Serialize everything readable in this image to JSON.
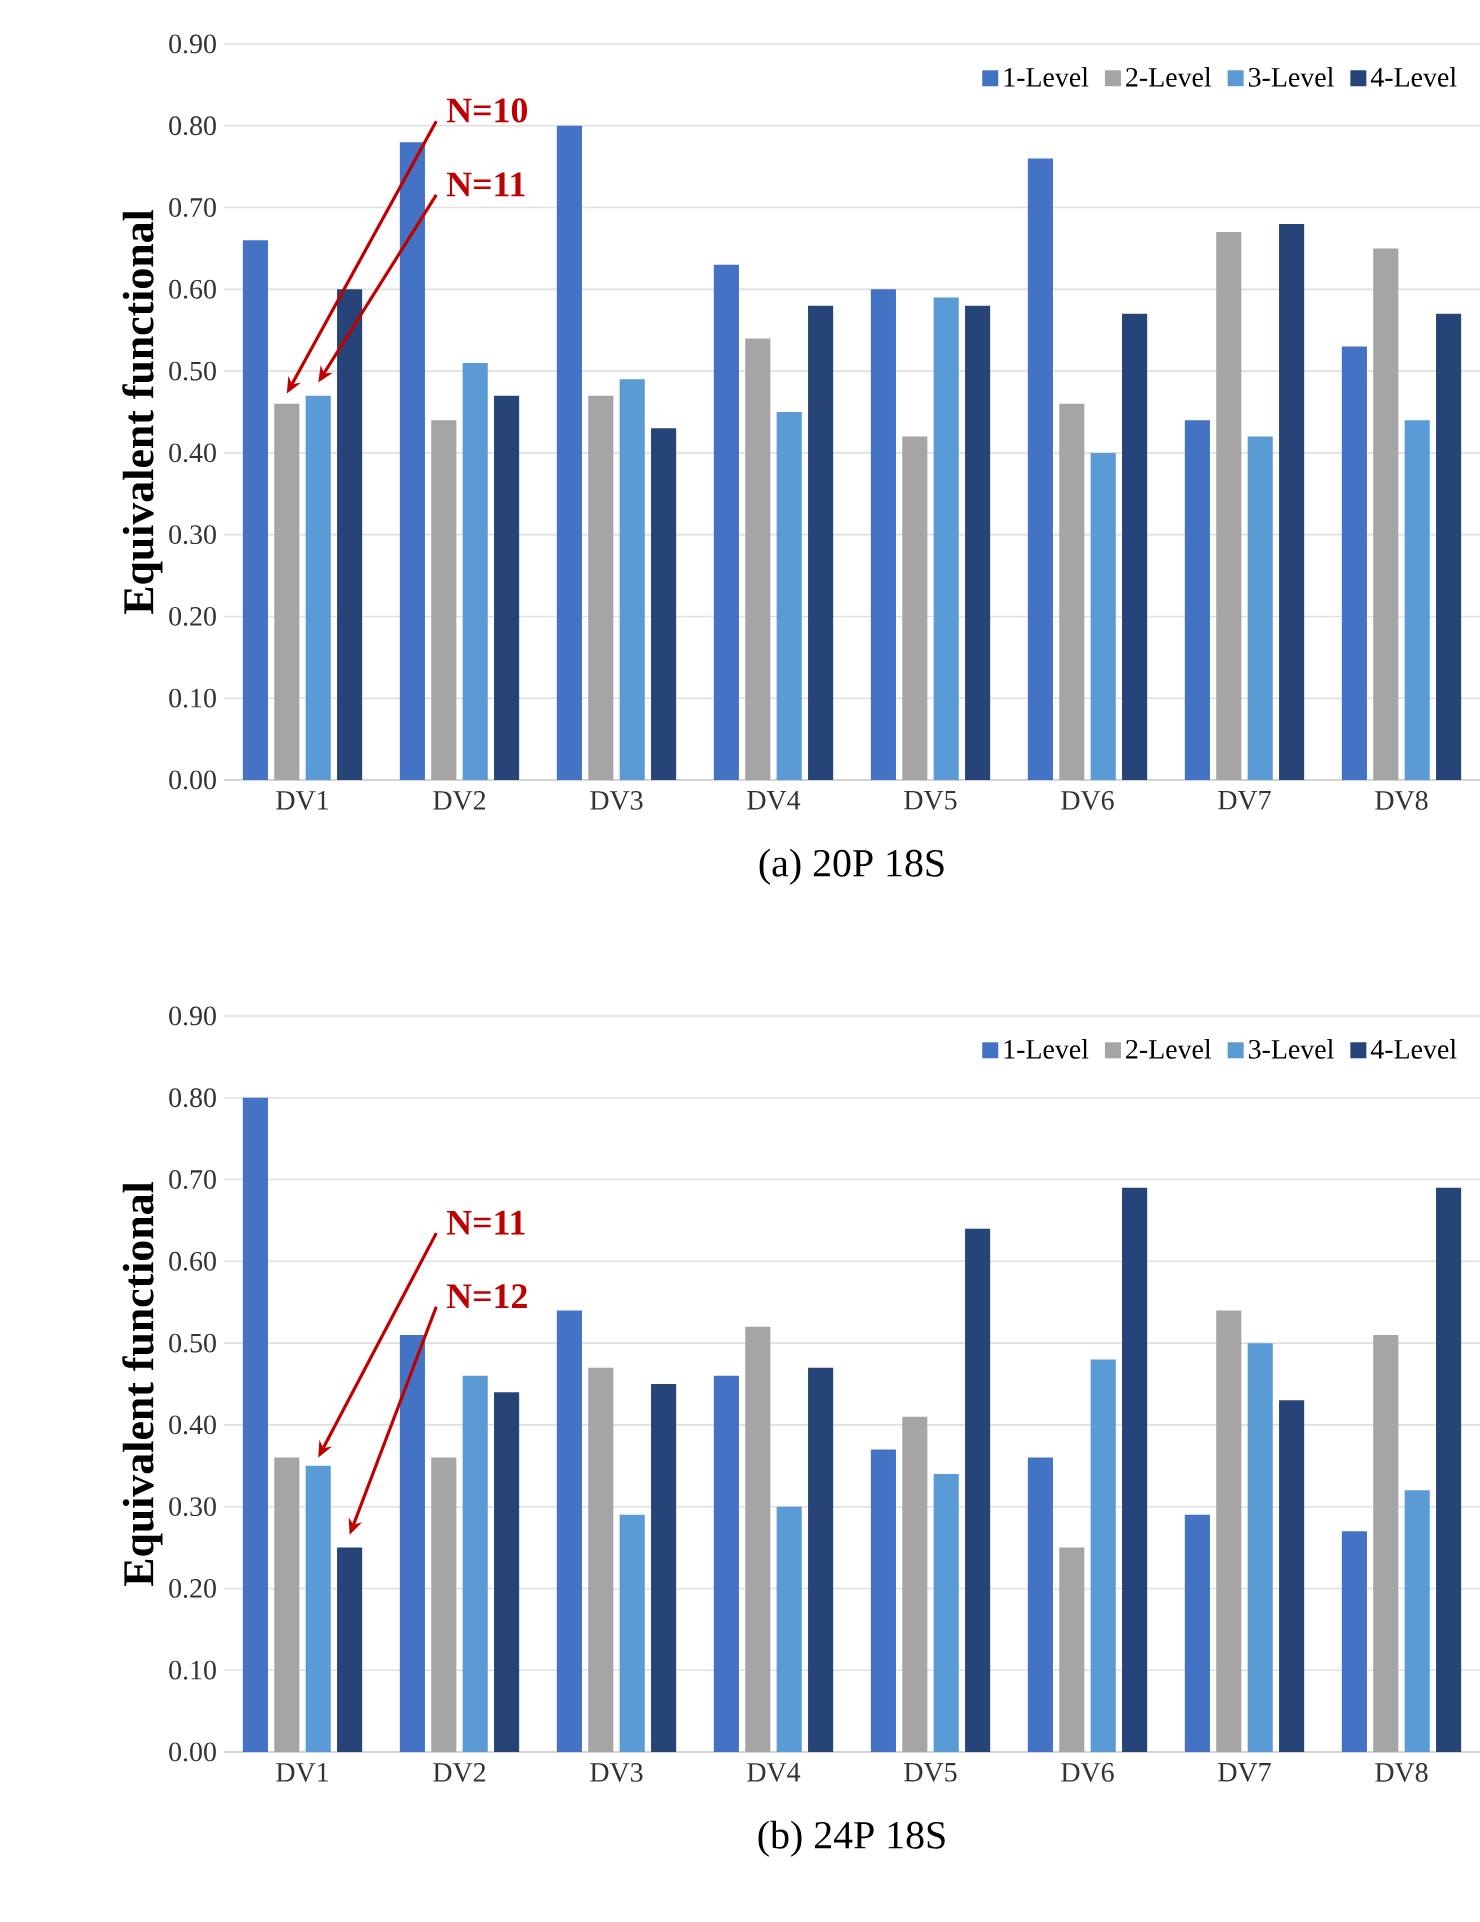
{
  "chart_data": [
    {
      "type": "bar",
      "title": "(a) 20P 18S",
      "ylabel": "Equivalent functional",
      "categories": [
        "DV1",
        "DV2",
        "DV3",
        "DV4",
        "DV5",
        "DV6",
        "DV7",
        "DV8"
      ],
      "series": [
        {
          "name": "1-Level",
          "color": "#4472c4",
          "values": [
            0.66,
            0.78,
            0.8,
            0.63,
            0.6,
            0.76,
            0.44,
            0.53
          ]
        },
        {
          "name": "2-Level",
          "color": "#a5a5a5",
          "values": [
            0.46,
            0.44,
            0.47,
            0.54,
            0.42,
            0.46,
            0.67,
            0.65
          ]
        },
        {
          "name": "3-Level",
          "color": "#5b9bd5",
          "values": [
            0.47,
            0.51,
            0.49,
            0.45,
            0.59,
            0.4,
            0.42,
            0.44
          ]
        },
        {
          "name": "4-Level",
          "color": "#264478",
          "values": [
            0.6,
            0.47,
            0.43,
            0.58,
            0.58,
            0.57,
            0.68,
            0.57
          ]
        }
      ],
      "ylim": [
        0,
        0.9
      ],
      "yticks": [
        {
          "value": 0,
          "label": "0.00"
        },
        {
          "value": 0.1,
          "label": "0.10"
        },
        {
          "value": 0.2,
          "label": "0.20"
        },
        {
          "value": 0.3,
          "label": "0.30"
        },
        {
          "value": 0.4,
          "label": "0.40"
        },
        {
          "value": 0.5,
          "label": "0.50"
        },
        {
          "value": 0.6,
          "label": "0.60"
        },
        {
          "value": 0.7,
          "label": "0.70"
        },
        {
          "value": 0.8,
          "label": "0.80"
        },
        {
          "value": 0.9,
          "label": "0.90"
        }
      ],
      "annotations": [
        "N=10",
        "N=11"
      ],
      "grid": "y",
      "legend": "top right"
    },
    {
      "type": "bar",
      "title": "(b) 24P 18S",
      "ylabel": "Equivalent functional",
      "categories": [
        "DV1",
        "DV2",
        "DV3",
        "DV4",
        "DV5",
        "DV6",
        "DV7",
        "DV8"
      ],
      "series": [
        {
          "name": "1-Level",
          "color": "#4472c4",
          "values": [
            0.8,
            0.51,
            0.54,
            0.46,
            0.37,
            0.36,
            0.29,
            0.27
          ]
        },
        {
          "name": "2-Level",
          "color": "#a5a5a5",
          "values": [
            0.36,
            0.36,
            0.47,
            0.52,
            0.41,
            0.25,
            0.54,
            0.51
          ]
        },
        {
          "name": "3-Level",
          "color": "#5b9bd5",
          "values": [
            0.35,
            0.46,
            0.29,
            0.3,
            0.34,
            0.48,
            0.5,
            0.32
          ]
        },
        {
          "name": "4-Level",
          "color": "#264478",
          "values": [
            0.25,
            0.44,
            0.45,
            0.47,
            0.64,
            0.69,
            0.43,
            0.69
          ]
        }
      ],
      "ylim": [
        0,
        0.9
      ],
      "yticks": [
        {
          "value": 0,
          "label": "0.00"
        },
        {
          "value": 0.1,
          "label": "0.10"
        },
        {
          "value": 0.2,
          "label": "0.20"
        },
        {
          "value": 0.3,
          "label": "0.30"
        },
        {
          "value": 0.4,
          "label": "0.40"
        },
        {
          "value": 0.5,
          "label": "0.50"
        },
        {
          "value": 0.6,
          "label": "0.60"
        },
        {
          "value": 0.7,
          "label": "0.70"
        },
        {
          "value": 0.8,
          "label": "0.80"
        },
        {
          "value": 0.9,
          "label": "0.90"
        }
      ],
      "annotations": [
        "N=11",
        "N=12"
      ],
      "grid": "y",
      "legend": "top right"
    }
  ]
}
